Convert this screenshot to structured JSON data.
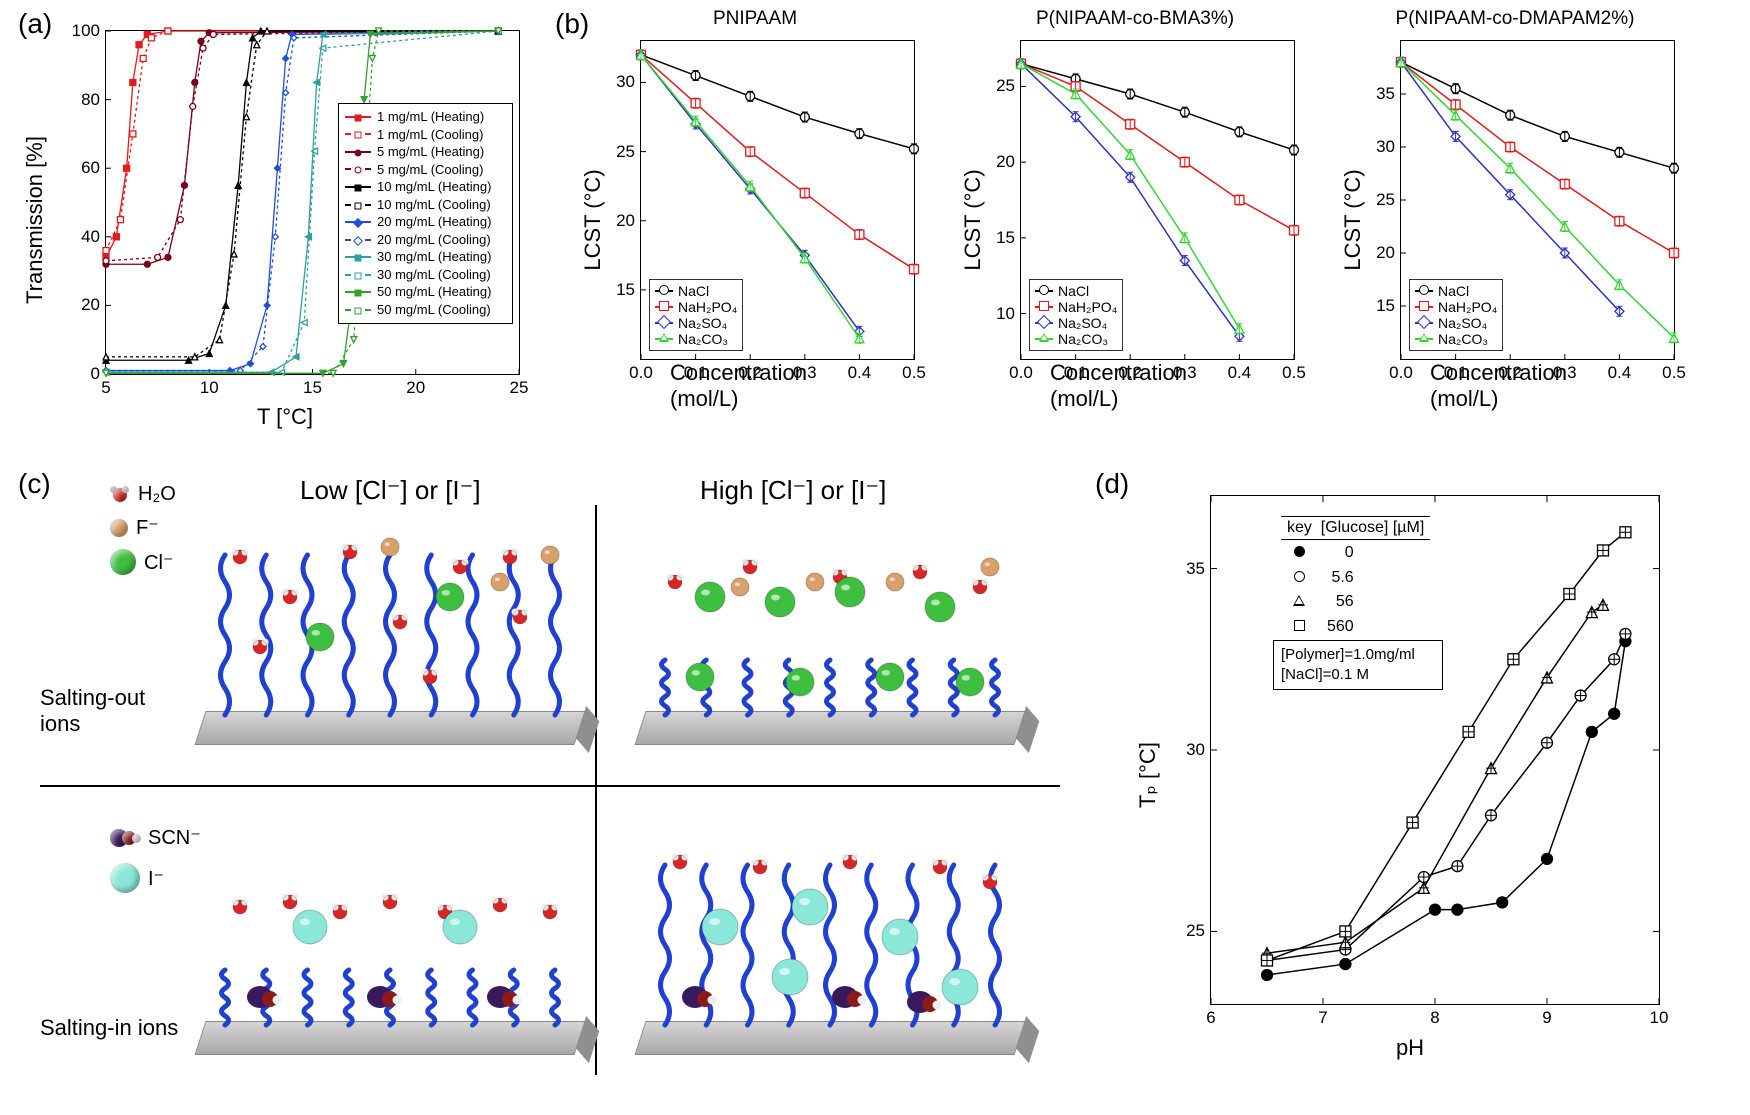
{
  "labels": {
    "a": "(a)",
    "b": "(b)",
    "c": "(c)",
    "d": "(d)"
  },
  "panelA": {
    "xlabel": "T [°C]",
    "ylabel": "Transmission [%]",
    "xlim": [
      5,
      25
    ],
    "ylim": [
      0,
      100
    ],
    "xticks": [
      5,
      10,
      15,
      20,
      25
    ],
    "yticks": [
      0,
      20,
      40,
      60,
      80,
      100
    ],
    "series": [
      {
        "label": "1 mg/mL (Heating)",
        "color": "#e41a1c",
        "marker": "square",
        "fill": true,
        "pts": [
          [
            5,
            34
          ],
          [
            5.5,
            40
          ],
          [
            6,
            60
          ],
          [
            6.3,
            85
          ],
          [
            6.6,
            96
          ],
          [
            7,
            99
          ],
          [
            8,
            100
          ],
          [
            24,
            100
          ]
        ]
      },
      {
        "label": "1 mg/mL (Cooling)",
        "color": "#e41a1c",
        "marker": "square",
        "fill": false,
        "pts": [
          [
            5,
            36
          ],
          [
            5.7,
            45
          ],
          [
            6.3,
            70
          ],
          [
            6.8,
            92
          ],
          [
            7.2,
            98
          ],
          [
            8,
            100
          ],
          [
            24,
            100
          ]
        ]
      },
      {
        "label": "5 mg/mL (Heating)",
        "color": "#7a0019",
        "marker": "circle",
        "fill": true,
        "pts": [
          [
            5,
            32
          ],
          [
            7,
            32
          ],
          [
            8,
            34
          ],
          [
            8.8,
            55
          ],
          [
            9.3,
            85
          ],
          [
            9.6,
            97
          ],
          [
            10,
            99.5
          ],
          [
            24,
            100
          ]
        ]
      },
      {
        "label": "5 mg/mL (Cooling)",
        "color": "#7a0019",
        "marker": "circle",
        "fill": false,
        "pts": [
          [
            5,
            33
          ],
          [
            7.5,
            34
          ],
          [
            8.6,
            45
          ],
          [
            9.2,
            78
          ],
          [
            9.7,
            95
          ],
          [
            10.2,
            99
          ],
          [
            24,
            100
          ]
        ]
      },
      {
        "label": "10 mg/mL (Heating)",
        "color": "#000000",
        "marker": "triangle",
        "fill": true,
        "pts": [
          [
            5,
            4
          ],
          [
            9,
            4
          ],
          [
            10,
            6
          ],
          [
            10.8,
            20
          ],
          [
            11.4,
            55
          ],
          [
            11.8,
            85
          ],
          [
            12.1,
            98
          ],
          [
            12.5,
            100
          ],
          [
            24,
            100
          ]
        ]
      },
      {
        "label": "10 mg/mL (Cooling)",
        "color": "#000000",
        "marker": "triangle",
        "fill": false,
        "pts": [
          [
            5,
            5
          ],
          [
            9.3,
            5
          ],
          [
            10.5,
            10
          ],
          [
            11.2,
            35
          ],
          [
            11.8,
            75
          ],
          [
            12.3,
            96
          ],
          [
            12.8,
            100
          ],
          [
            24,
            100
          ]
        ]
      },
      {
        "label": "20 mg/mL (Heating)",
        "color": "#1f4fd6",
        "marker": "diamond",
        "fill": true,
        "pts": [
          [
            5,
            1
          ],
          [
            11,
            1
          ],
          [
            12,
            3
          ],
          [
            12.8,
            20
          ],
          [
            13.3,
            60
          ],
          [
            13.7,
            92
          ],
          [
            14,
            99
          ],
          [
            24,
            100
          ]
        ]
      },
      {
        "label": "20 mg/mL (Cooling)",
        "color": "#1f4fd6",
        "marker": "diamond",
        "fill": false,
        "pts": [
          [
            5,
            1
          ],
          [
            11.5,
            1
          ],
          [
            12.6,
            8
          ],
          [
            13.2,
            40
          ],
          [
            13.7,
            82
          ],
          [
            14.1,
            98
          ],
          [
            24,
            100
          ]
        ]
      },
      {
        "label": "30 mg/mL (Heating)",
        "color": "#2ea0a0",
        "marker": "triangle-left",
        "fill": true,
        "pts": [
          [
            5,
            0.5
          ],
          [
            13,
            0.5
          ],
          [
            14.2,
            5
          ],
          [
            14.8,
            40
          ],
          [
            15.2,
            85
          ],
          [
            15.5,
            99
          ],
          [
            24,
            100
          ]
        ]
      },
      {
        "label": "30 mg/mL (Cooling)",
        "color": "#2ea0a0",
        "marker": "triangle-left",
        "fill": false,
        "pts": [
          [
            5,
            0.5
          ],
          [
            13.5,
            0.5
          ],
          [
            14.6,
            15
          ],
          [
            15.1,
            65
          ],
          [
            15.5,
            95
          ],
          [
            24,
            100
          ]
        ]
      },
      {
        "label": "50 mg/mL (Heating)",
        "color": "#33a02c",
        "marker": "triangle-down",
        "fill": true,
        "pts": [
          [
            5,
            0.2
          ],
          [
            15.5,
            0.2
          ],
          [
            16.5,
            3
          ],
          [
            17.1,
            30
          ],
          [
            17.5,
            80
          ],
          [
            17.8,
            99
          ],
          [
            24,
            100
          ]
        ]
      },
      {
        "label": "50 mg/mL (Cooling)",
        "color": "#33a02c",
        "marker": "triangle-down",
        "fill": false,
        "pts": [
          [
            5,
            0.2
          ],
          [
            16,
            0.2
          ],
          [
            17,
            10
          ],
          [
            17.5,
            55
          ],
          [
            17.9,
            92
          ],
          [
            18.2,
            100
          ],
          [
            24,
            100
          ]
        ]
      }
    ]
  },
  "panelB": {
    "xlabel": "Concentration (mol/L)",
    "ylabel": "LCST (°C)",
    "xticks": [
      0.0,
      0.1,
      0.2,
      0.3,
      0.4,
      0.5
    ],
    "salts": [
      {
        "label": "NaCl",
        "color": "#000000",
        "shape": "circle"
      },
      {
        "label": "NaH₂PO₄",
        "color": "#e41a1c",
        "shape": "square"
      },
      {
        "label": "Na₂SO₄",
        "color": "#3030c0",
        "shape": "diamond"
      },
      {
        "label": "Na₂CO₃",
        "color": "#33d633",
        "shape": "triangle"
      }
    ],
    "charts": [
      {
        "title": "PNIPAAM",
        "ylim": [
          10,
          33
        ],
        "yticks": [
          15,
          20,
          25,
          30
        ],
        "series": [
          [
            [
              0,
              32
            ],
            [
              0.1,
              30.5
            ],
            [
              0.2,
              29
            ],
            [
              0.3,
              27.5
            ],
            [
              0.4,
              26.3
            ],
            [
              0.5,
              25.2
            ]
          ],
          [
            [
              0,
              32
            ],
            [
              0.1,
              28.5
            ],
            [
              0.2,
              25
            ],
            [
              0.3,
              22
            ],
            [
              0.4,
              19
            ],
            [
              0.5,
              16.5
            ]
          ],
          [
            [
              0,
              32
            ],
            [
              0.1,
              27
            ],
            [
              0.2,
              22.3
            ],
            [
              0.3,
              17.5
            ],
            [
              0.4,
              12
            ]
          ],
          [
            [
              0,
              32
            ],
            [
              0.1,
              27.2
            ],
            [
              0.2,
              22.5
            ],
            [
              0.3,
              17.3
            ],
            [
              0.4,
              11.5
            ]
          ]
        ]
      },
      {
        "title": "P(NIPAAM-co-BMA3%)",
        "ylim": [
          7,
          28
        ],
        "yticks": [
          10,
          15,
          20,
          25
        ],
        "series": [
          [
            [
              0,
              26.5
            ],
            [
              0.1,
              25.5
            ],
            [
              0.2,
              24.5
            ],
            [
              0.3,
              23.3
            ],
            [
              0.4,
              22
            ],
            [
              0.5,
              20.8
            ]
          ],
          [
            [
              0,
              26.5
            ],
            [
              0.1,
              25
            ],
            [
              0.2,
              22.5
            ],
            [
              0.3,
              20
            ],
            [
              0.4,
              17.5
            ],
            [
              0.5,
              15.5
            ]
          ],
          [
            [
              0,
              26.5
            ],
            [
              0.1,
              23
            ],
            [
              0.2,
              19
            ],
            [
              0.3,
              13.5
            ],
            [
              0.4,
              8.5
            ]
          ],
          [
            [
              0,
              26.5
            ],
            [
              0.1,
              24.5
            ],
            [
              0.2,
              20.5
            ],
            [
              0.3,
              15
            ],
            [
              0.4,
              9
            ]
          ]
        ]
      },
      {
        "title": "P(NIPAAM-co-DMAPAM2%)",
        "ylim": [
          10,
          40
        ],
        "yticks": [
          15,
          20,
          25,
          30,
          35
        ],
        "series": [
          [
            [
              0,
              38
            ],
            [
              0.1,
              35.5
            ],
            [
              0.2,
              33
            ],
            [
              0.3,
              31
            ],
            [
              0.4,
              29.5
            ],
            [
              0.5,
              28
            ]
          ],
          [
            [
              0,
              38
            ],
            [
              0.1,
              34
            ],
            [
              0.2,
              30
            ],
            [
              0.3,
              26.5
            ],
            [
              0.4,
              23
            ],
            [
              0.5,
              20
            ]
          ],
          [
            [
              0,
              38
            ],
            [
              0.1,
              31
            ],
            [
              0.2,
              25.5
            ],
            [
              0.3,
              20
            ],
            [
              0.4,
              14.5
            ]
          ],
          [
            [
              0,
              38
            ],
            [
              0.1,
              33
            ],
            [
              0.2,
              28
            ],
            [
              0.3,
              22.5
            ],
            [
              0.4,
              17
            ],
            [
              0.5,
              12
            ]
          ]
        ]
      }
    ]
  },
  "panelC": {
    "leftTitle": "Low [Cl⁻] or [I⁻]",
    "rightTitle": "High [Cl⁻] or [I⁻]",
    "legend": [
      {
        "name": "H₂O",
        "color": "#d62728",
        "size": 16,
        "type": "water"
      },
      {
        "name": "F⁻",
        "color": "#d9a06b",
        "size": 18,
        "type": "ball"
      },
      {
        "name": "Cl⁻",
        "color": "#3fbf3f",
        "size": 26,
        "type": "ball"
      },
      {
        "name": "SCN⁻",
        "color": "#3a1a5e",
        "size": 24,
        "type": "scn"
      },
      {
        "name": "I⁻",
        "color": "#8be8d8",
        "size": 30,
        "type": "ball"
      }
    ],
    "rowLabels": [
      "Salting-out ions",
      "Salting-in ions"
    ],
    "brushColor": "#2040d0"
  },
  "panelD": {
    "xlabel": "pH",
    "ylabel": "Tₚ  [°C]",
    "xlim": [
      6,
      10
    ],
    "ylim": [
      23,
      37
    ],
    "xticks": [
      6,
      7,
      8,
      9,
      10
    ],
    "yticks": [
      25,
      30,
      35
    ],
    "legendHeader": [
      "key",
      "[Glucose] [µM]"
    ],
    "anno": [
      "[Polymer]=1.0mg/ml",
      "[NaCl]=0.1 M"
    ],
    "series": [
      {
        "label": "0",
        "shape": "circle",
        "fill": true,
        "pts": [
          [
            6.5,
            23.8
          ],
          [
            7.2,
            24.1
          ],
          [
            8.0,
            25.6
          ],
          [
            8.2,
            25.6
          ],
          [
            8.6,
            25.8
          ],
          [
            9.0,
            27
          ],
          [
            9.4,
            30.5
          ],
          [
            9.6,
            31
          ],
          [
            9.7,
            33
          ]
        ]
      },
      {
        "label": "5.6",
        "shape": "circle",
        "fill": false,
        "pts": [
          [
            6.5,
            24.2
          ],
          [
            7.2,
            24.5
          ],
          [
            7.9,
            26.5
          ],
          [
            8.2,
            26.8
          ],
          [
            8.5,
            28.2
          ],
          [
            9.0,
            30.2
          ],
          [
            9.3,
            31.5
          ],
          [
            9.6,
            32.5
          ],
          [
            9.7,
            33.2
          ]
        ]
      },
      {
        "label": "56",
        "shape": "triangle",
        "fill": false,
        "pts": [
          [
            6.5,
            24.4
          ],
          [
            7.2,
            24.7
          ],
          [
            7.9,
            26.2
          ],
          [
            8.5,
            29.5
          ],
          [
            9.0,
            32
          ],
          [
            9.4,
            33.8
          ],
          [
            9.5,
            34
          ]
        ]
      },
      {
        "label": "560",
        "shape": "square",
        "fill": false,
        "pts": [
          [
            6.5,
            24.2
          ],
          [
            7.2,
            25
          ],
          [
            7.8,
            28
          ],
          [
            8.3,
            30.5
          ],
          [
            8.7,
            32.5
          ],
          [
            9.2,
            34.3
          ],
          [
            9.5,
            35.5
          ],
          [
            9.7,
            36
          ]
        ]
      }
    ]
  }
}
